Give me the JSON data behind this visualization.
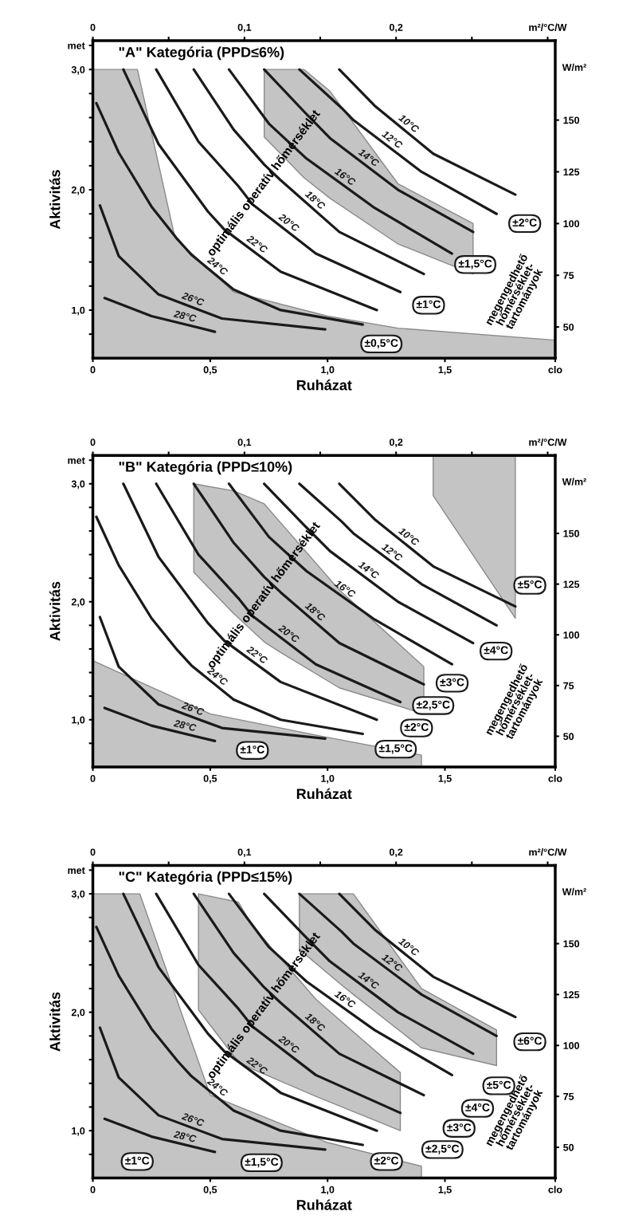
{
  "chart_data": [
    {
      "type": "line",
      "title": "\"A\" Kategória (PPD≤6%)",
      "xlabel": "Ruházat",
      "ylabel": "Aktivitás",
      "xlim": [
        0,
        1.97
      ],
      "xticks": [
        0,
        {
          "value": 0.5,
          "label": "0,5"
        },
        {
          "value": 1.0,
          "label": "1,0"
        },
        {
          "value": 1.5,
          "label": "1,5"
        },
        {
          "value": 1.97,
          "label": "clo"
        }
      ],
      "ylim": [
        0.6,
        3.24
      ],
      "yticks": [
        {
          "value": 0.8,
          "label": null
        },
        {
          "value": 1.0,
          "label": "1,0"
        },
        {
          "value": 1.2,
          "label": null
        },
        {
          "value": 1.4,
          "label": null
        },
        {
          "value": 1.6,
          "label": null
        },
        {
          "value": 1.8,
          "label": null
        },
        {
          "value": 2.0,
          "label": "2,0"
        },
        {
          "value": 2.2,
          "label": null
        },
        {
          "value": 2.4,
          "label": null
        },
        {
          "value": 2.6,
          "label": null
        },
        {
          "value": 2.8,
          "label": null
        },
        {
          "value": 3.0,
          "label": "3,0"
        },
        {
          "value": 3.2,
          "label": "met"
        }
      ],
      "x2lim": [
        0,
        0.305
      ],
      "x2ticks": [
        0,
        {
          "value": 0.05,
          "label": null
        },
        {
          "value": 0.1,
          "label": "0,1"
        },
        {
          "value": 0.15,
          "label": null
        },
        {
          "value": 0.2,
          "label": "0,2"
        },
        {
          "value": 0.25,
          "label": null
        },
        {
          "value": 0.3,
          "label": "m²/°C/W"
        }
      ],
      "y2lim": [
        34.9,
        188.4
      ],
      "y2ticks": [
        50,
        75,
        100,
        125,
        150
      ],
      "y2label": "W/m²",
      "series": [
        {
          "type": "area",
          "color": "#c4c4c4",
          "x": [
            0,
            0.19,
            0.35,
            0.6,
            1.0,
            1.3,
            1.97
          ],
          "values": [
            3.0,
            3.0,
            1.6,
            1.15,
            0.95,
            0.85,
            0.75
          ]
        },
        {
          "name": "28°C",
          "color": "#1a1a1a",
          "x": [
            0.05,
            0.25,
            0.52
          ],
          "values": [
            1.1,
            0.95,
            0.82
          ]
        },
        {
          "name": "26°C",
          "color": "#1a1a1a",
          "x": [
            0.03,
            0.11,
            0.28,
            0.55,
            0.99
          ],
          "values": [
            1.87,
            1.45,
            1.13,
            0.93,
            0.84
          ]
        },
        {
          "name": "24°C",
          "color": "#1a1a1a",
          "x": [
            0.015,
            0.11,
            0.25,
            0.36,
            0.42,
            0.6,
            0.8,
            1.15
          ],
          "values": [
            2.72,
            2.31,
            1.86,
            1.59,
            1.46,
            1.17,
            1.0,
            0.88
          ]
        },
        {
          "name": "22°C",
          "color": "#1a1a1a",
          "x": [
            0.13,
            0.28,
            0.49,
            0.56,
            0.8,
            1.21
          ],
          "values": [
            3.0,
            2.38,
            1.82,
            1.67,
            1.32,
            1.0
          ]
        },
        {
          "name": "20°C",
          "color": "#1a1a1a",
          "x": [
            0.27,
            0.45,
            0.62,
            0.68,
            0.95,
            1.31
          ],
          "values": [
            3.0,
            2.4,
            2.03,
            1.88,
            1.47,
            1.15
          ]
        },
        {
          "name": "18°C",
          "color": "#1a1a1a",
          "x": [
            0.43,
            0.6,
            0.73,
            0.8,
            1.05,
            1.41
          ],
          "values": [
            3.0,
            2.5,
            2.21,
            2.08,
            1.65,
            1.3
          ]
        },
        {
          "name": "16°C",
          "color": "#1a1a1a",
          "x": [
            0.58,
            0.75,
            0.91,
            1.2,
            1.53
          ],
          "values": [
            3.0,
            2.55,
            2.26,
            1.85,
            1.47
          ]
        },
        {
          "name": "14°C",
          "color": "#1a1a1a",
          "x": [
            0.73,
            0.9,
            1.01,
            1.3,
            1.62
          ],
          "values": [
            3.0,
            2.65,
            2.43,
            2.0,
            1.65
          ],
          "lower": [
            2.44,
            2.1,
            1.93,
            1.55,
            1.3
          ],
          "upper": [
            3.0,
            3.0,
            2.82,
            2.05,
            1.72
          ]
        },
        {
          "name": "12°C",
          "color": "#1a1a1a",
          "x": [
            0.88,
            1.06,
            1.11,
            1.4,
            1.72
          ],
          "values": [
            3.0,
            2.68,
            2.58,
            2.15,
            1.8
          ]
        },
        {
          "name": "10°C",
          "color": "#1a1a1a",
          "x": [
            1.05,
            1.2,
            1.45,
            1.8
          ],
          "values": [
            3.0,
            2.7,
            2.3,
            1.96
          ]
        }
      ],
      "annotations": [
        "optimális operatív hőmérséklet",
        "megengedhető\nhőmérséklet-\ntartományok",
        "±2°C",
        "±1,5°C",
        "±1°C",
        "±0,5°C"
      ]
    },
    {
      "type": "line",
      "title": "\"B\" Kategória (PPD≤10%)",
      "xlabel": "Ruházat",
      "ylabel": "Aktivitás",
      "xlim": [
        0,
        1.97
      ],
      "xticks": [
        0,
        {
          "value": 0.5,
          "label": "0,5"
        },
        {
          "value": 1.0,
          "label": "1,0"
        },
        {
          "value": 1.5,
          "label": "1,5"
        },
        {
          "value": 1.97,
          "label": "clo"
        }
      ],
      "ylim": [
        0.6,
        3.24
      ],
      "yticks": [
        {
          "value": 0.8,
          "label": null
        },
        {
          "value": 1.0,
          "label": "1,0"
        },
        {
          "value": 1.2,
          "label": null
        },
        {
          "value": 1.4,
          "label": null
        },
        {
          "value": 1.6,
          "label": null
        },
        {
          "value": 1.8,
          "label": null
        },
        {
          "value": 2.0,
          "label": "2,0"
        },
        {
          "value": 2.2,
          "label": null
        },
        {
          "value": 2.4,
          "label": null
        },
        {
          "value": 2.6,
          "label": null
        },
        {
          "value": 2.8,
          "label": null
        },
        {
          "value": 3.0,
          "label": "3,0"
        },
        {
          "value": 3.2,
          "label": "met"
        }
      ],
      "x2lim": [
        0,
        0.305
      ],
      "x2ticks": [
        0,
        {
          "value": 0.05,
          "label": null
        },
        {
          "value": 0.1,
          "label": "0,1"
        },
        {
          "value": 0.15,
          "label": null
        },
        {
          "value": 0.2,
          "label": "0,2"
        },
        {
          "value": 0.25,
          "label": null
        },
        {
          "value": 0.3,
          "label": "m²/°C/W"
        }
      ],
      "y2lim": [
        34.9,
        188.4
      ],
      "y2ticks": [
        50,
        75,
        100,
        125,
        150
      ],
      "y2label": "W/m²",
      "series": [
        {
          "type": "area",
          "color": "#c4c4c4",
          "x": [
            0,
            0.5,
            1.0,
            1.4
          ],
          "values": [
            1.5,
            1.05,
            0.85,
            0.7
          ]
        },
        {
          "name": "28°C",
          "color": "#1a1a1a",
          "x": [
            0.05,
            0.25,
            0.52
          ],
          "values": [
            1.1,
            0.95,
            0.82
          ]
        },
        {
          "name": "26°C",
          "color": "#1a1a1a",
          "x": [
            0.03,
            0.11,
            0.28,
            0.55,
            0.99
          ],
          "values": [
            1.87,
            1.45,
            1.13,
            0.93,
            0.84
          ]
        },
        {
          "name": "24°C",
          "color": "#1a1a1a",
          "x": [
            0.015,
            0.11,
            0.25,
            0.36,
            0.42,
            0.6,
            0.8,
            1.15
          ],
          "values": [
            2.72,
            2.31,
            1.86,
            1.59,
            1.46,
            1.17,
            1.0,
            0.88
          ]
        },
        {
          "name": "22°C",
          "color": "#1a1a1a",
          "x": [
            0.13,
            0.28,
            0.49,
            0.56,
            0.8,
            1.21
          ],
          "values": [
            3.0,
            2.38,
            1.82,
            1.67,
            1.32,
            1.0
          ]
        },
        {
          "name": "20°C",
          "color": "#1a1a1a",
          "x": [
            0.27,
            0.45,
            0.62,
            0.68,
            0.95,
            1.31
          ],
          "values": [
            3.0,
            2.4,
            2.03,
            1.88,
            1.47,
            1.15
          ]
        },
        {
          "name": "18°C",
          "color": "#1a1a1a",
          "x": [
            0.43,
            0.6,
            0.73,
            0.8,
            1.05,
            1.41
          ],
          "values": [
            3.0,
            2.5,
            2.21,
            2.08,
            1.65,
            1.3
          ],
          "lower": [
            2.25,
            1.9,
            1.66,
            1.57,
            1.27,
            1.05
          ],
          "upper": [
            3.0,
            2.94,
            2.83,
            2.67,
            2.1,
            1.45
          ]
        },
        {
          "name": "16°C",
          "color": "#1a1a1a",
          "x": [
            0.58,
            0.75,
            0.91,
            1.2,
            1.53
          ],
          "values": [
            3.0,
            2.55,
            2.26,
            1.85,
            1.47
          ]
        },
        {
          "name": "14°C",
          "color": "#1a1a1a",
          "x": [
            0.73,
            0.9,
            1.01,
            1.3,
            1.62
          ],
          "values": [
            3.0,
            2.65,
            2.43,
            2.0,
            1.65
          ]
        },
        {
          "name": "12°C",
          "color": "#1a1a1a",
          "x": [
            0.88,
            1.06,
            1.11,
            1.4,
            1.72
          ],
          "values": [
            3.0,
            2.68,
            2.58,
            2.15,
            1.8
          ]
        },
        {
          "name": "10°C",
          "color": "#1a1a1a",
          "x": [
            1.05,
            1.2,
            1.45,
            1.8
          ],
          "values": [
            3.0,
            2.7,
            2.3,
            1.96
          ],
          "lower": [
            null,
            null,
            2.9,
            1.86
          ],
          "upper": [
            null,
            null,
            3.24,
            3.24
          ]
        }
      ],
      "annotations": [
        "optimális operatív hőmérséklet",
        "megengedhető\nhőmérséklet-\ntartományok",
        "±5°C",
        "±4°C",
        "±3°C",
        "±2,5°C",
        "±2°C",
        "±1,5°C",
        "±1°C"
      ]
    },
    {
      "type": "line",
      "title": "\"C\" Kategória (PPD≤15%)",
      "xlabel": "Ruházat",
      "ylabel": "Aktivitás",
      "xlim": [
        0,
        1.97
      ],
      "xticks": [
        0,
        {
          "value": 0.5,
          "label": "0,5"
        },
        {
          "value": 1.0,
          "label": "1,0"
        },
        {
          "value": 1.5,
          "label": "1,5"
        },
        {
          "value": 1.97,
          "label": "clo"
        }
      ],
      "ylim": [
        0.6,
        3.24
      ],
      "yticks": [
        {
          "value": 0.8,
          "label": null
        },
        {
          "value": 1.0,
          "label": "1,0"
        },
        {
          "value": 1.2,
          "label": null
        },
        {
          "value": 1.4,
          "label": null
        },
        {
          "value": 1.6,
          "label": null
        },
        {
          "value": 1.8,
          "label": null
        },
        {
          "value": 2.0,
          "label": "2,0"
        },
        {
          "value": 2.2,
          "label": null
        },
        {
          "value": 2.4,
          "label": null
        },
        {
          "value": 2.6,
          "label": null
        },
        {
          "value": 2.8,
          "label": null
        },
        {
          "value": 3.0,
          "label": "3,0"
        },
        {
          "value": 3.2,
          "label": "met"
        }
      ],
      "x2lim": [
        0,
        0.305
      ],
      "x2ticks": [
        0,
        {
          "value": 0.05,
          "label": null
        },
        {
          "value": 0.1,
          "label": "0,1"
        },
        {
          "value": 0.15,
          "label": null
        },
        {
          "value": 0.2,
          "label": "0,2"
        },
        {
          "value": 0.25,
          "label": null
        },
        {
          "value": 0.3,
          "label": "m²/°C/W"
        }
      ],
      "y2lim": [
        34.9,
        188.4
      ],
      "y2ticks": [
        50,
        75,
        100,
        125,
        150
      ],
      "y2label": "W/m²",
      "series": [
        {
          "type": "area",
          "color": "#c4c4c4",
          "x": [
            0,
            0.2,
            0.5,
            1.0,
            1.4
          ],
          "values": [
            3.0,
            3.0,
            1.3,
            0.9,
            0.7
          ]
        },
        {
          "name": "28°C",
          "color": "#1a1a1a",
          "x": [
            0.05,
            0.25,
            0.52
          ],
          "values": [
            1.1,
            0.95,
            0.82
          ]
        },
        {
          "name": "26°C",
          "color": "#1a1a1a",
          "x": [
            0.03,
            0.11,
            0.28,
            0.55,
            0.99
          ],
          "values": [
            1.87,
            1.45,
            1.13,
            0.93,
            0.84
          ]
        },
        {
          "name": "24°C",
          "color": "#1a1a1a",
          "x": [
            0.015,
            0.11,
            0.25,
            0.36,
            0.42,
            0.6,
            0.8,
            1.15
          ],
          "values": [
            2.72,
            2.31,
            1.86,
            1.59,
            1.46,
            1.17,
            1.0,
            0.88
          ]
        },
        {
          "name": "22°C",
          "color": "#1a1a1a",
          "x": [
            0.13,
            0.28,
            0.49,
            0.56,
            0.8,
            1.21
          ],
          "values": [
            3.0,
            2.38,
            1.82,
            1.67,
            1.32,
            1.0
          ]
        },
        {
          "name": "20°C",
          "color": "#1a1a1a",
          "x": [
            0.27,
            0.45,
            0.62,
            0.68,
            0.95,
            1.31
          ],
          "values": [
            3.0,
            2.4,
            2.03,
            1.88,
            1.47,
            1.15
          ],
          "lower": [
            null,
            2.02,
            1.58,
            1.52,
            1.29,
            1.0
          ],
          "upper": [
            null,
            3.0,
            2.93,
            2.73,
            2.11,
            1.49
          ]
        },
        {
          "name": "18°C",
          "color": "#1a1a1a",
          "x": [
            0.43,
            0.6,
            0.73,
            0.8,
            1.05,
            1.41
          ],
          "values": [
            3.0,
            2.5,
            2.21,
            2.08,
            1.65,
            1.3
          ]
        },
        {
          "name": "16°C",
          "color": "#1a1a1a",
          "x": [
            0.58,
            0.75,
            0.91,
            1.2,
            1.53
          ],
          "values": [
            3.0,
            2.55,
            2.26,
            1.85,
            1.47
          ]
        },
        {
          "name": "14°C",
          "color": "#1a1a1a",
          "x": [
            0.73,
            0.9,
            1.01,
            1.3,
            1.62
          ],
          "values": [
            3.0,
            2.65,
            2.43,
            2.0,
            1.65
          ]
        },
        {
          "name": "12°C",
          "color": "#1a1a1a",
          "x": [
            0.88,
            1.06,
            1.11,
            1.4,
            1.72
          ],
          "values": [
            3.0,
            2.68,
            2.58,
            2.15,
            1.8
          ],
          "lower": [
            2.53,
            2.23,
            2.15,
            1.7,
            1.55
          ],
          "upper": [
            3.0,
            3.0,
            3.0,
            2.2,
            1.85
          ]
        },
        {
          "name": "10°C",
          "color": "#1a1a1a",
          "x": [
            1.05,
            1.2,
            1.45,
            1.8
          ],
          "values": [
            3.0,
            2.7,
            2.3,
            1.96
          ]
        }
      ],
      "annotations": [
        "optimális operatív hőmérséklet",
        "megengedhető\nhőmérséklet-\ntartományok",
        "±6°C",
        "±5°C",
        "±4°C",
        "±3°C",
        "±2,5°C",
        "±2°C",
        "±1,5°C",
        "±1°C"
      ]
    }
  ]
}
